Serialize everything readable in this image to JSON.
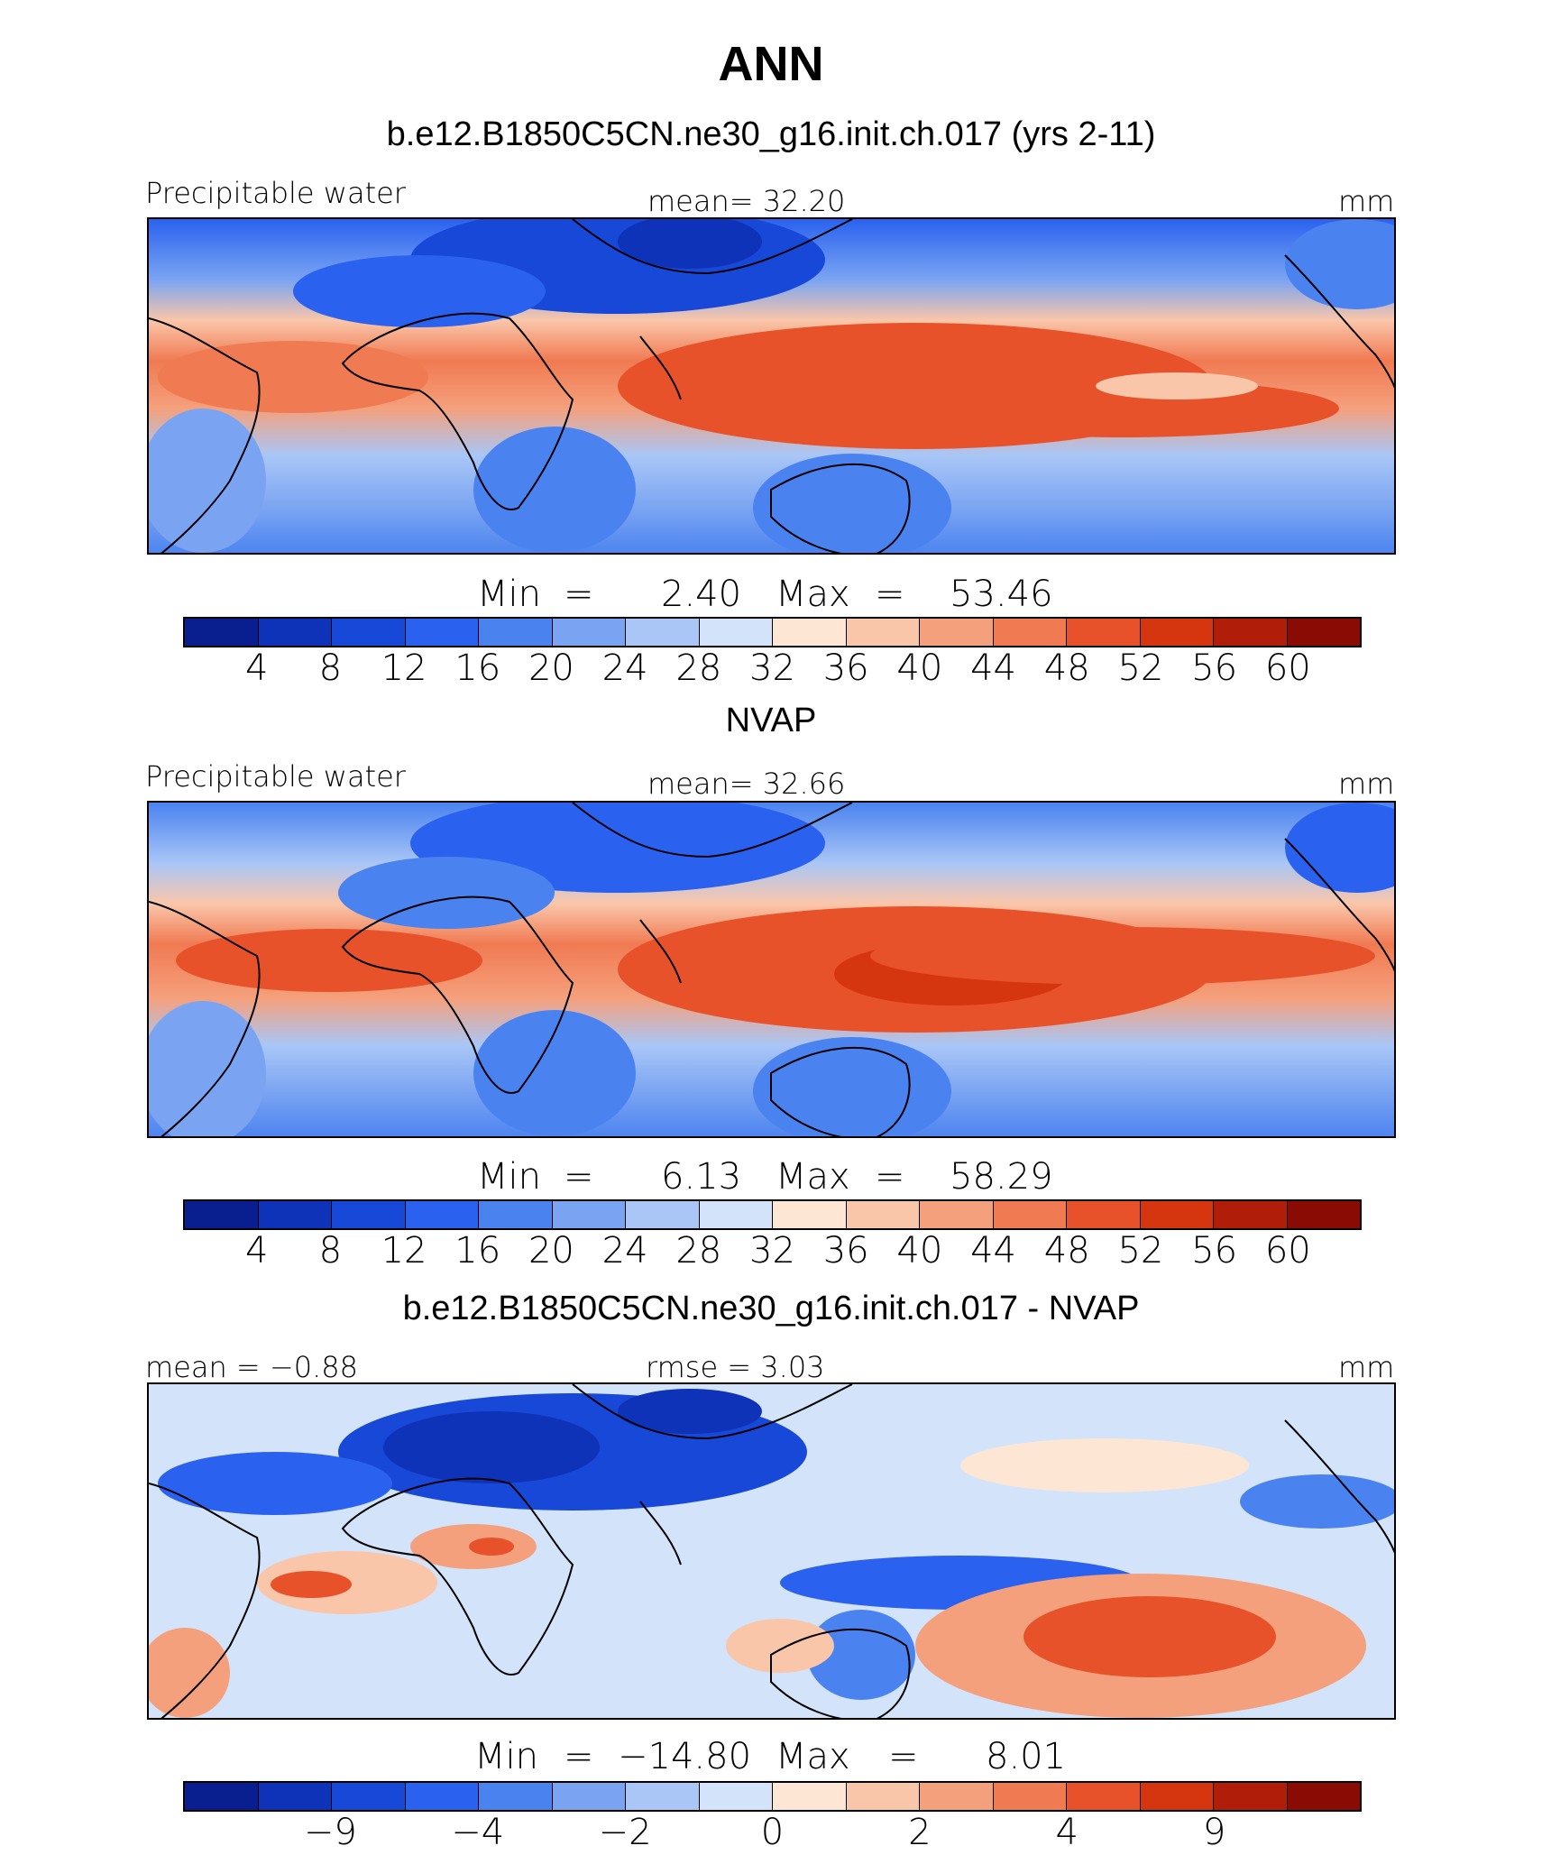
{
  "title": "ANN",
  "colors": [
    "#0a1f8f",
    "#0e32b8",
    "#1848d8",
    "#2a62ef",
    "#4a82f0",
    "#7aa4f2",
    "#a9c6f6",
    "#d3e3fa",
    "#fde7d4",
    "#fac6aa",
    "#f5a07c",
    "#f07a52",
    "#e8522a",
    "#d6360f",
    "#b01e0a",
    "#8a0a04"
  ],
  "panels": [
    {
      "title": "b.e12.B1850C5CN.ne30_g16.init.ch.017 (yrs 2-11)",
      "left_label": "Precipitable  water",
      "center_label": "mean=   32.20",
      "right_label": "mm",
      "min_label": "Min",
      "min_eq": "=",
      "min_value": "2.40",
      "max_label": "Max",
      "max_eq": "=",
      "max_value": "53.46",
      "ticks": [
        "4",
        "8",
        "12",
        "16",
        "20",
        "24",
        "28",
        "32",
        "36",
        "40",
        "44",
        "48",
        "52",
        "56",
        "60"
      ]
    },
    {
      "title": "NVAP",
      "left_label": "Precipitable  water",
      "center_label": "mean=   32.66",
      "right_label": "mm",
      "min_label": "Min",
      "min_eq": "=",
      "min_value": "6.13",
      "max_label": "Max",
      "max_eq": "=",
      "max_value": "58.29",
      "ticks": [
        "4",
        "8",
        "12",
        "16",
        "20",
        "24",
        "28",
        "32",
        "36",
        "40",
        "44",
        "48",
        "52",
        "56",
        "60"
      ]
    },
    {
      "title": "b.e12.B1850C5CN.ne30_g16.init.ch.017 - NVAP",
      "left_label": "mean =  −0.88",
      "center_label": "rmse =     3.03",
      "right_label": "mm",
      "min_label": "Min",
      "min_eq": "=",
      "min_value": "−14.80",
      "max_label": "Max",
      "max_eq": "=",
      "max_value": "8.01",
      "ticks": [
        "−9",
        "−4",
        "−2",
        "0",
        "2",
        "4",
        "9"
      ]
    }
  ]
}
